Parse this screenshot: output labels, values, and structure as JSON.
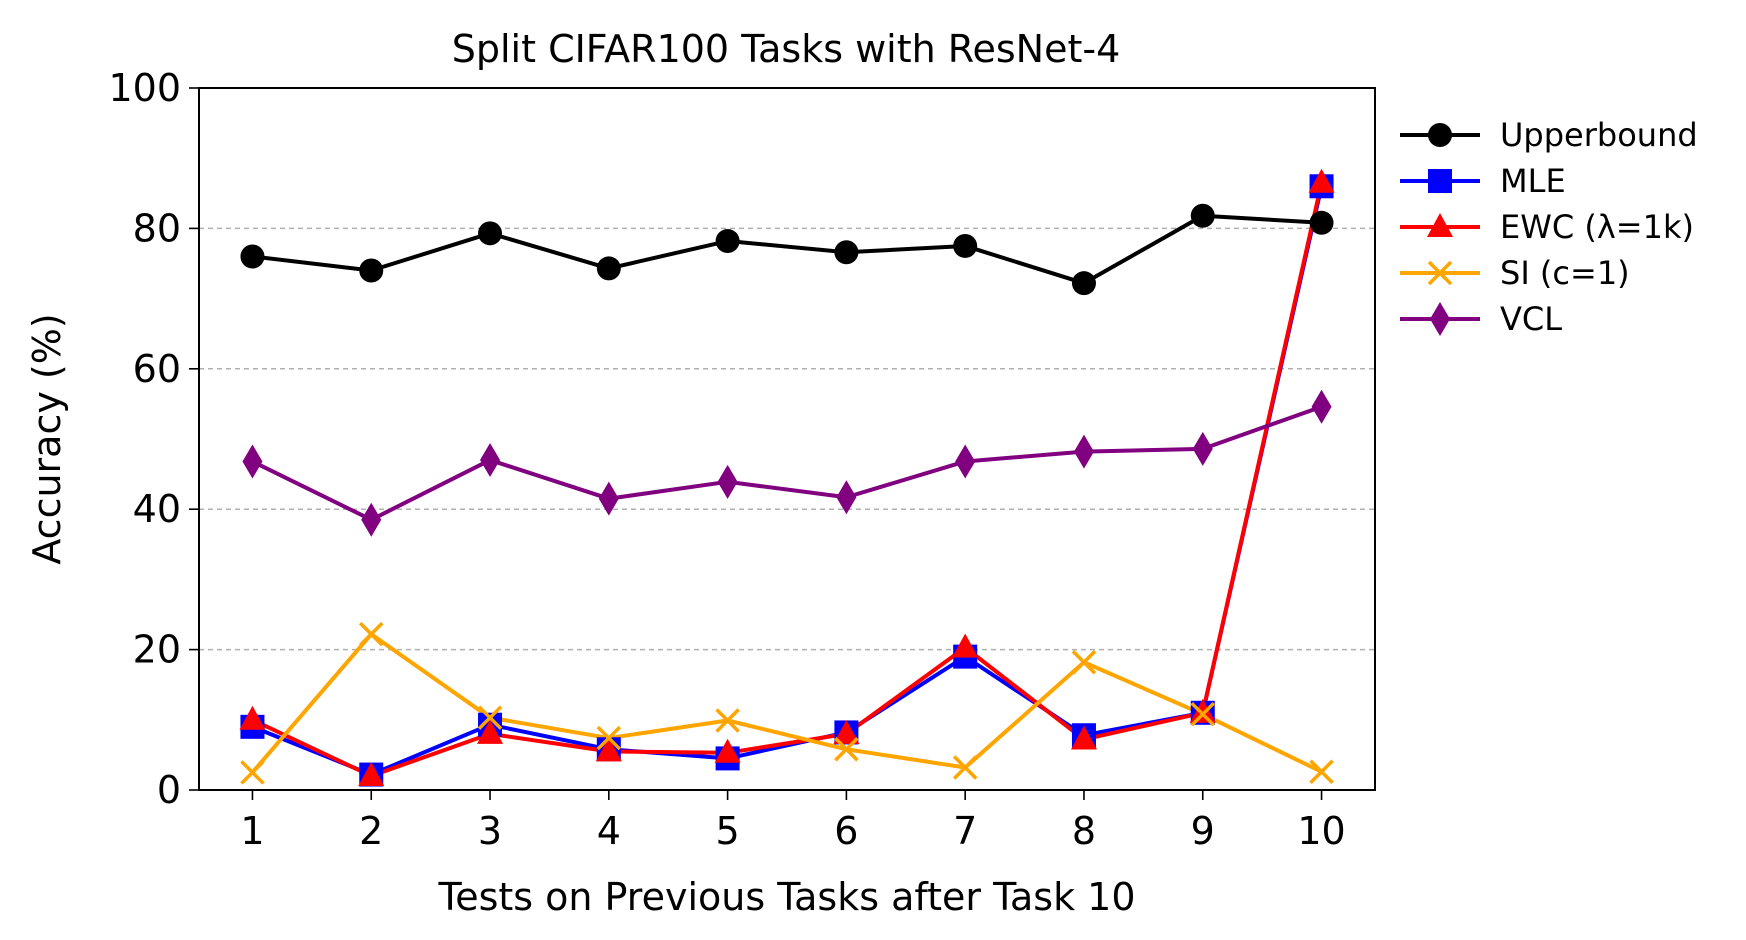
{
  "chart_data": {
    "type": "line",
    "title": "Split CIFAR100 Tasks with ResNet-4",
    "xlabel": "Tests on Previous Tasks after Task 10",
    "ylabel": "Accuracy (%)",
    "x": [
      1,
      2,
      3,
      4,
      5,
      6,
      7,
      8,
      9,
      10
    ],
    "x_tick_labels": [
      "1",
      "2",
      "3",
      "4",
      "5",
      "6",
      "7",
      "8",
      "9",
      "10"
    ],
    "xlim": [
      0.55,
      10.45
    ],
    "ylim": [
      0,
      100
    ],
    "y_ticks": [
      0,
      20,
      40,
      60,
      80,
      100
    ],
    "y_tick_labels": [
      "0",
      "20",
      "40",
      "60",
      "80",
      "100"
    ],
    "grid": "horizontal dashed",
    "legend_position": "outside right, top",
    "series": [
      {
        "name": "Upperbound",
        "color": "#000000",
        "marker": "circle",
        "values": [
          76.0,
          74.0,
          79.3,
          74.3,
          78.2,
          76.6,
          77.5,
          72.2,
          81.8,
          80.8
        ]
      },
      {
        "name": "MLE",
        "color": "#0000ff",
        "marker": "square",
        "values": [
          9.0,
          2.2,
          9.3,
          5.8,
          4.5,
          8.2,
          19.0,
          7.8,
          11.0,
          86.0
        ]
      },
      {
        "name": "EWC (λ=1k)",
        "color": "#ff0000",
        "marker": "triangle",
        "values": [
          10.0,
          2.0,
          8.0,
          5.5,
          5.3,
          8.0,
          20.3,
          7.2,
          11.0,
          86.5
        ]
      },
      {
        "name": "SI (c=1)",
        "color": "#ffa500",
        "marker": "x",
        "values": [
          2.5,
          22.2,
          10.3,
          7.4,
          9.9,
          5.8,
          3.2,
          18.2,
          10.8,
          2.6
        ]
      },
      {
        "name": "VCL",
        "color": "#800080",
        "marker": "diamond",
        "values": [
          46.8,
          38.5,
          47.0,
          41.5,
          43.9,
          41.7,
          46.8,
          48.2,
          48.6,
          54.6
        ]
      }
    ]
  }
}
